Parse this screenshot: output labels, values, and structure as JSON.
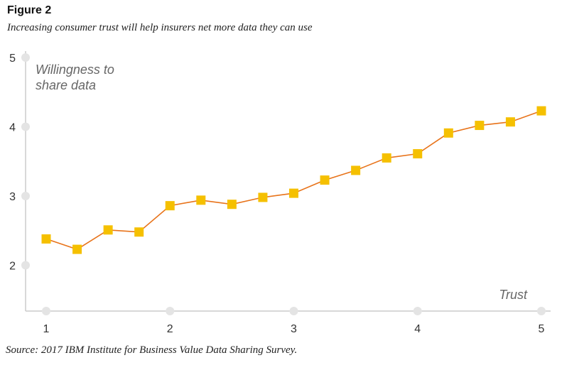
{
  "figure": {
    "title": "Figure 2",
    "subtitle": "Increasing consumer trust will help insurers net more data they can use",
    "source": "Source: 2017 IBM Institute for Business Value Data Sharing Survey."
  },
  "chart_data": {
    "type": "line",
    "title": "",
    "xlabel": "Trust",
    "ylabel": "Willingness to share data",
    "ylabel_lines": [
      "Willingness to",
      "share data"
    ],
    "xlim": [
      1,
      5
    ],
    "ylim": [
      1.4,
      5
    ],
    "x_ticks": [
      1,
      2,
      3,
      4,
      5
    ],
    "y_ticks": [
      2,
      3,
      4,
      5
    ],
    "grid": false,
    "legend": "none",
    "series": [
      {
        "x": [
          1,
          1.25,
          1.5,
          1.75,
          2,
          2.25,
          2.5,
          2.75,
          3,
          3.25,
          3.5,
          3.75,
          4,
          4.25,
          4.5,
          4.75,
          5
        ],
        "y": [
          2.38,
          2.23,
          2.51,
          2.48,
          2.86,
          2.94,
          2.88,
          2.98,
          3.04,
          3.23,
          3.37,
          3.55,
          3.61,
          3.91,
          4.02,
          4.07,
          4.23
        ],
        "marker": "square",
        "marker_color": "#f5c000",
        "line_color": "#e8731a"
      }
    ],
    "axis_color": "#cccccc",
    "tick_dot_color": "#e4e4e4"
  }
}
